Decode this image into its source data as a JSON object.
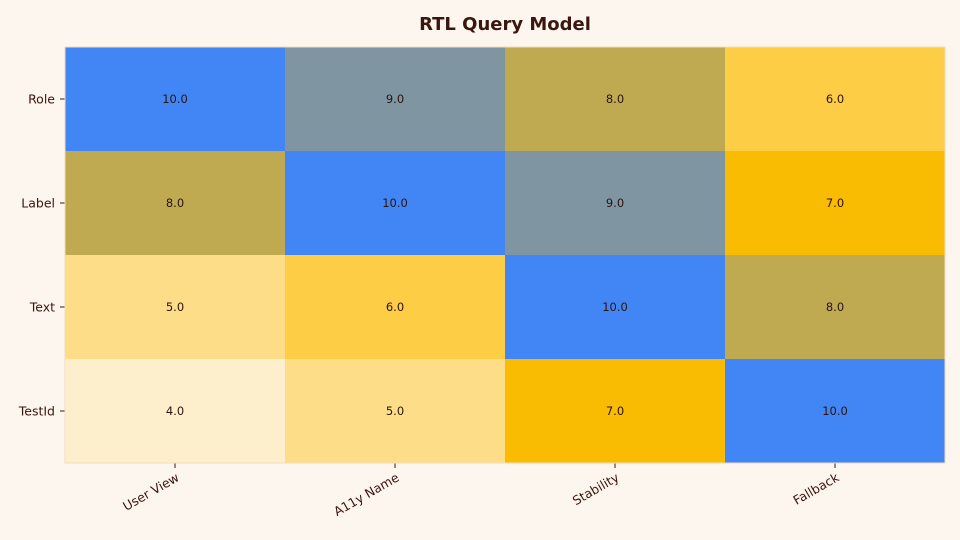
{
  "chart_data": {
    "type": "heatmap",
    "title": "RTL Query Model",
    "xlabel": "",
    "ylabel": "",
    "x_categories": [
      "User View",
      "A11y Name",
      "Stability",
      "Fallback"
    ],
    "y_categories": [
      "Role",
      "Label",
      "Text",
      "TestId"
    ],
    "values": [
      [
        10.0,
        9.0,
        8.0,
        6.0
      ],
      [
        8.0,
        10.0,
        9.0,
        7.0
      ],
      [
        5.0,
        6.0,
        10.0,
        8.0
      ],
      [
        4.0,
        5.0,
        7.0,
        10.0
      ]
    ],
    "value_format": "0.0",
    "color_map": {
      "4": "#fdefcb",
      "5": "#fedd88",
      "6": "#fccd45",
      "7": "#f9bc03",
      "8": "#bfaa52",
      "9": "#7f96a2",
      "10": "#4285f4"
    },
    "grid": false,
    "legend": "none"
  }
}
